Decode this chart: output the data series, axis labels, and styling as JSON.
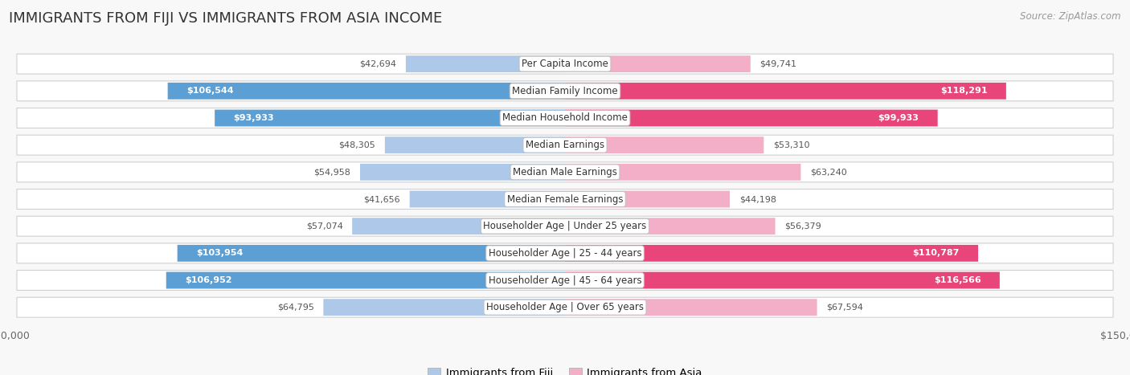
{
  "title": "IMMIGRANTS FROM FIJI VS IMMIGRANTS FROM ASIA INCOME",
  "source": "Source: ZipAtlas.com",
  "categories": [
    "Per Capita Income",
    "Median Family Income",
    "Median Household Income",
    "Median Earnings",
    "Median Male Earnings",
    "Median Female Earnings",
    "Householder Age | Under 25 years",
    "Householder Age | 25 - 44 years",
    "Householder Age | 45 - 64 years",
    "Householder Age | Over 65 years"
  ],
  "fiji_values": [
    42694,
    106544,
    93933,
    48305,
    54958,
    41656,
    57074,
    103954,
    106952,
    64795
  ],
  "asia_values": [
    49741,
    118291,
    99933,
    53310,
    63240,
    44198,
    56379,
    110787,
    116566,
    67594
  ],
  "fiji_labels": [
    "$42,694",
    "$106,544",
    "$93,933",
    "$48,305",
    "$54,958",
    "$41,656",
    "$57,074",
    "$103,954",
    "$106,952",
    "$64,795"
  ],
  "asia_labels": [
    "$49,741",
    "$118,291",
    "$99,933",
    "$53,310",
    "$63,240",
    "$44,198",
    "$56,379",
    "$110,787",
    "$116,566",
    "$67,594"
  ],
  "fiji_color_light": "#adc8e8",
  "fiji_color_dark": "#5b9fd4",
  "asia_color_light": "#f4afc8",
  "asia_color_dark": "#e8457a",
  "threshold": 75000,
  "max_value": 150000,
  "legend_fiji": "Immigrants from Fiji",
  "legend_asia": "Immigrants from Asia",
  "background_color": "#f8f8f8",
  "row_color": "#efefef",
  "title_fontsize": 13,
  "label_fontsize": 8.5,
  "value_fontsize": 8.0
}
